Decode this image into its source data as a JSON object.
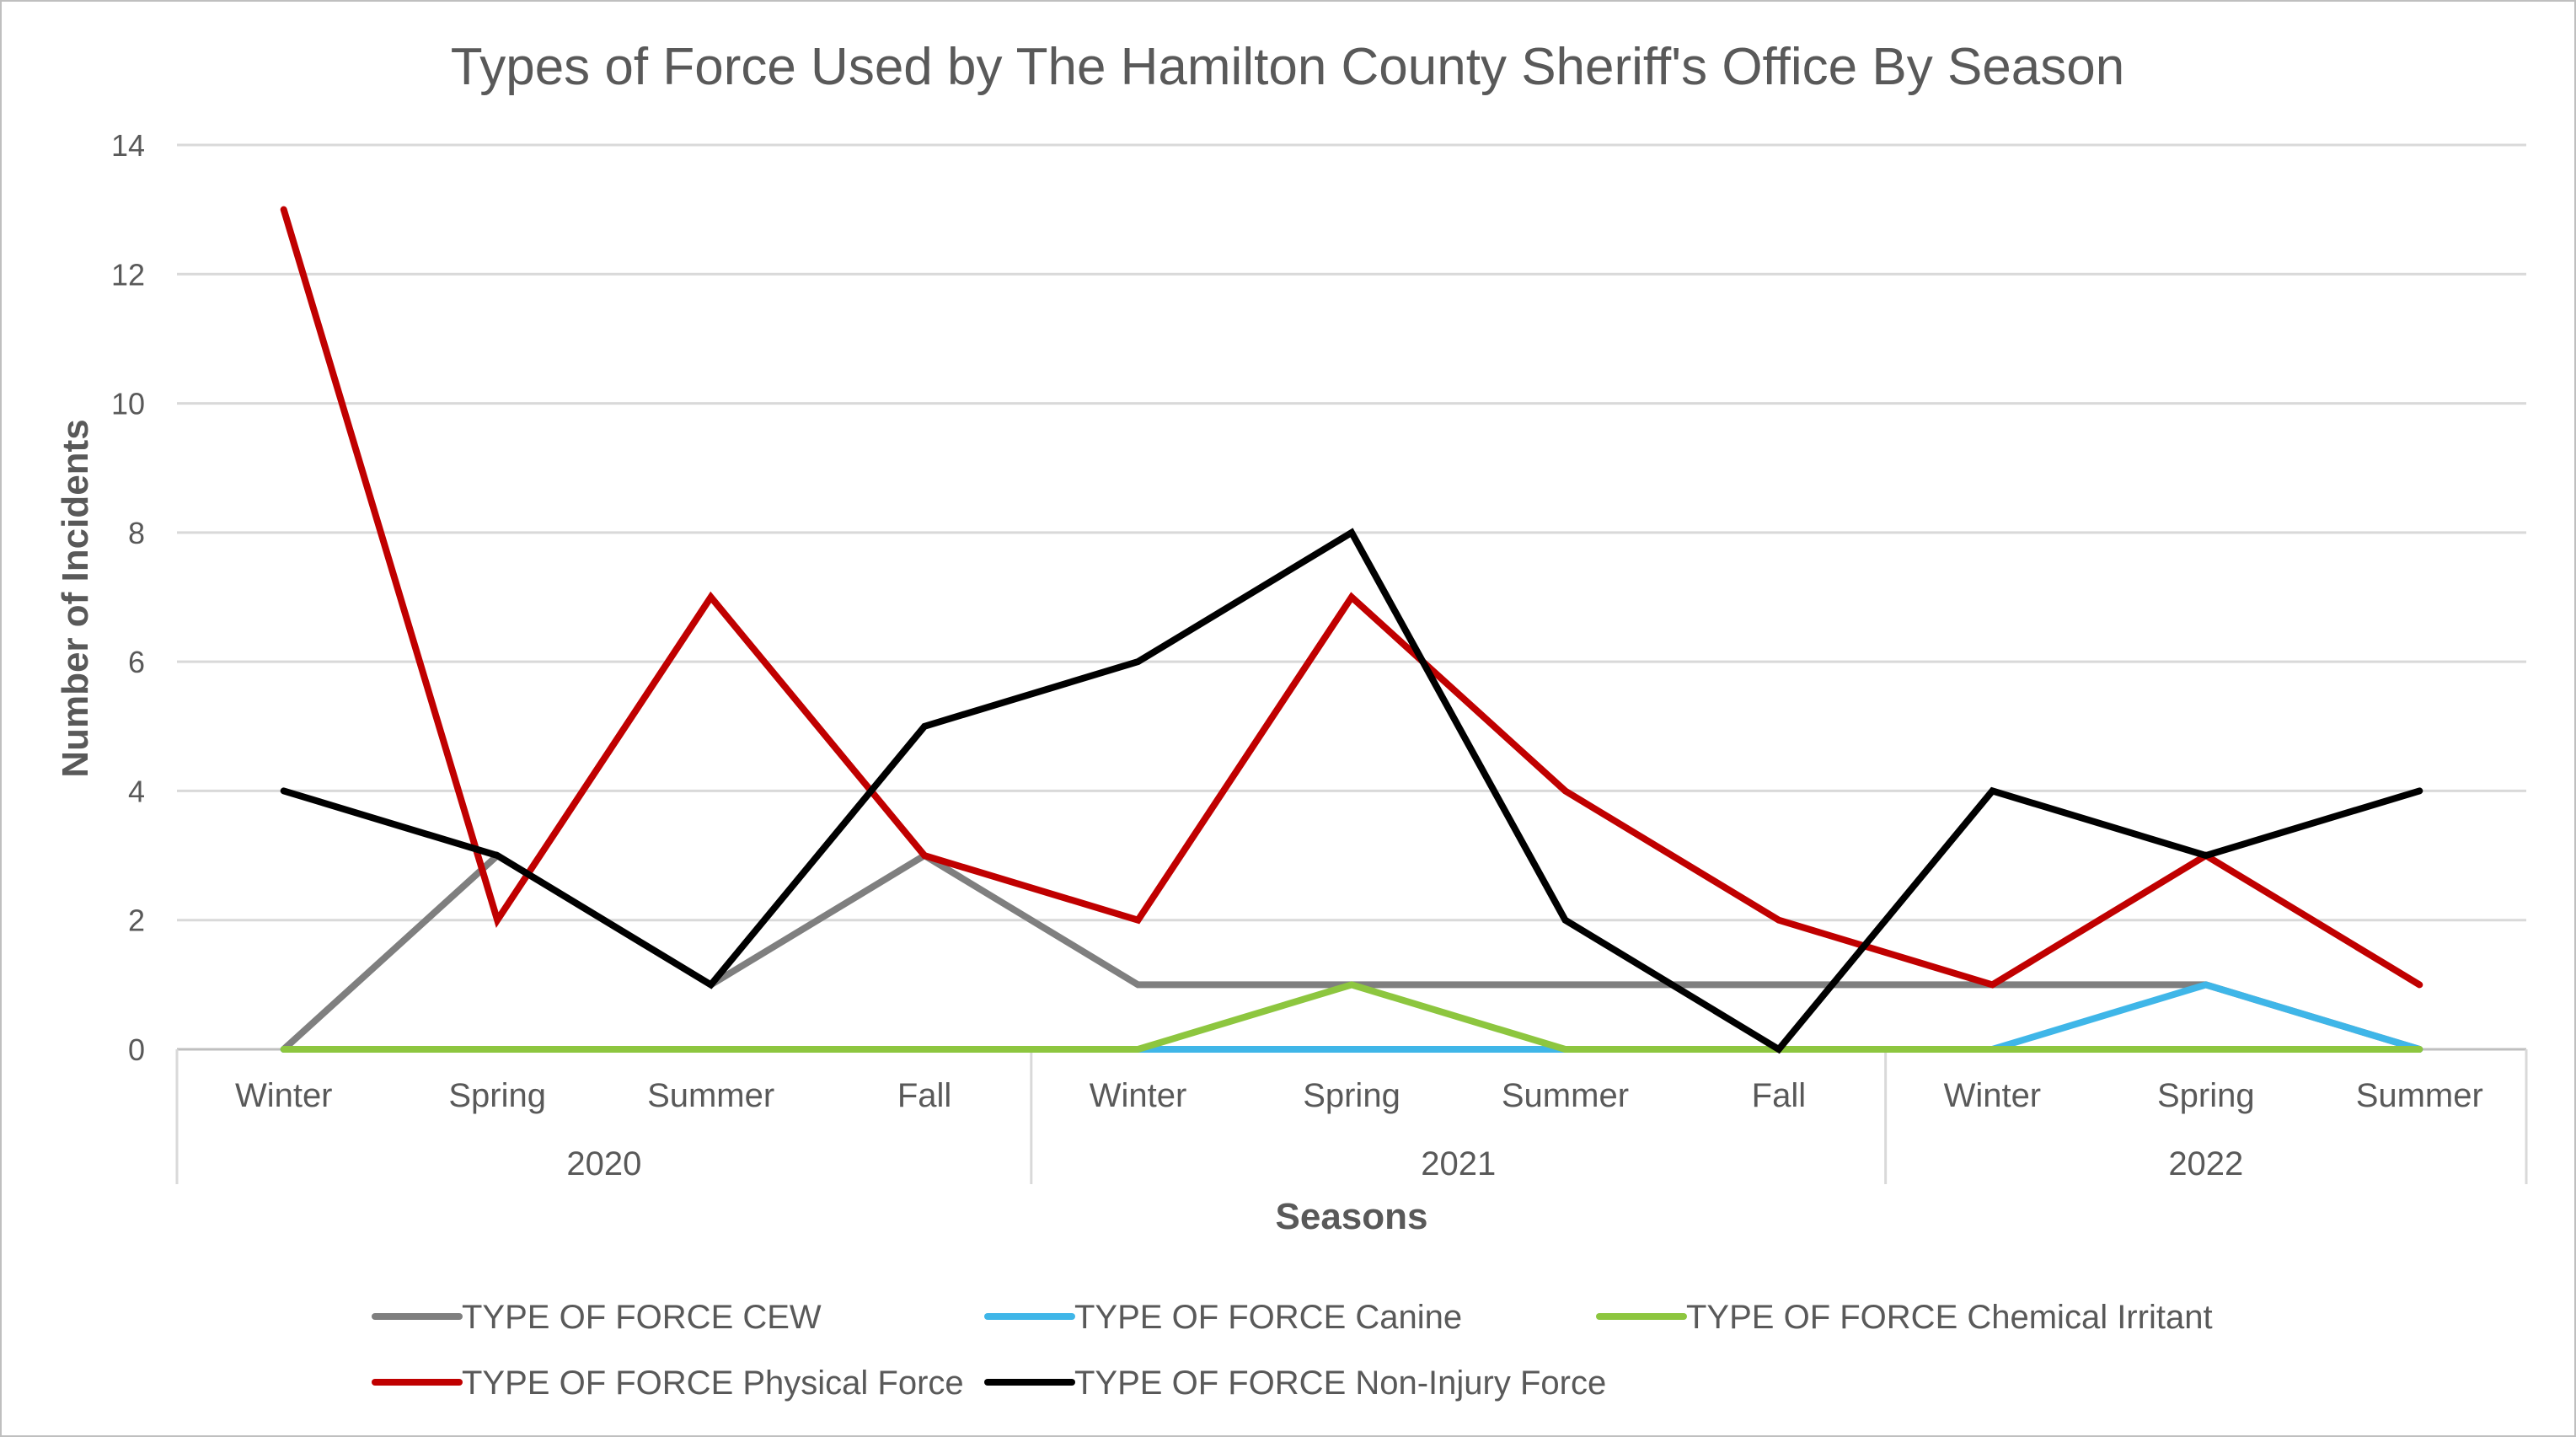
{
  "chart_data": {
    "type": "line",
    "title": "Types of Force Used by The Hamilton County Sheriff's Office By Season",
    "xlabel": "Seasons",
    "ylabel": "Number of Incidents",
    "ylim": [
      0,
      14
    ],
    "yticks": [
      0,
      2,
      4,
      6,
      8,
      10,
      12,
      14
    ],
    "grid": true,
    "legend_position": "bottom",
    "categories": [
      "Winter",
      "Spring",
      "Summer",
      "Fall",
      "Winter",
      "Spring",
      "Summer",
      "Fall",
      "Winter",
      "Spring",
      "Summer"
    ],
    "groups": [
      {
        "label": "2020",
        "count": 4
      },
      {
        "label": "2021",
        "count": 4
      },
      {
        "label": "2022",
        "count": 3
      }
    ],
    "series": [
      {
        "name": "TYPE OF FORCE CEW",
        "color": "#7f7f7f",
        "values": [
          0,
          3,
          1,
          3,
          1,
          1,
          1,
          1,
          1,
          1,
          0
        ]
      },
      {
        "name": "TYPE OF FORCE Canine",
        "color": "#3fb6e8",
        "values": [
          0,
          0,
          0,
          0,
          0,
          0,
          0,
          0,
          0,
          1,
          0
        ]
      },
      {
        "name": "TYPE OF FORCE Chemical Irritant",
        "color": "#8dc63f",
        "values": [
          0,
          0,
          0,
          0,
          0,
          1,
          0,
          0,
          0,
          0,
          0
        ]
      },
      {
        "name": "TYPE OF FORCE Physical Force",
        "color": "#c00000",
        "values": [
          13,
          2,
          7,
          3,
          2,
          7,
          4,
          2,
          1,
          3,
          1
        ]
      },
      {
        "name": "TYPE OF FORCE Non-Injury Force",
        "color": "#000000",
        "values": [
          4,
          3,
          1,
          5,
          6,
          8,
          2,
          0,
          4,
          3,
          4
        ]
      }
    ]
  }
}
